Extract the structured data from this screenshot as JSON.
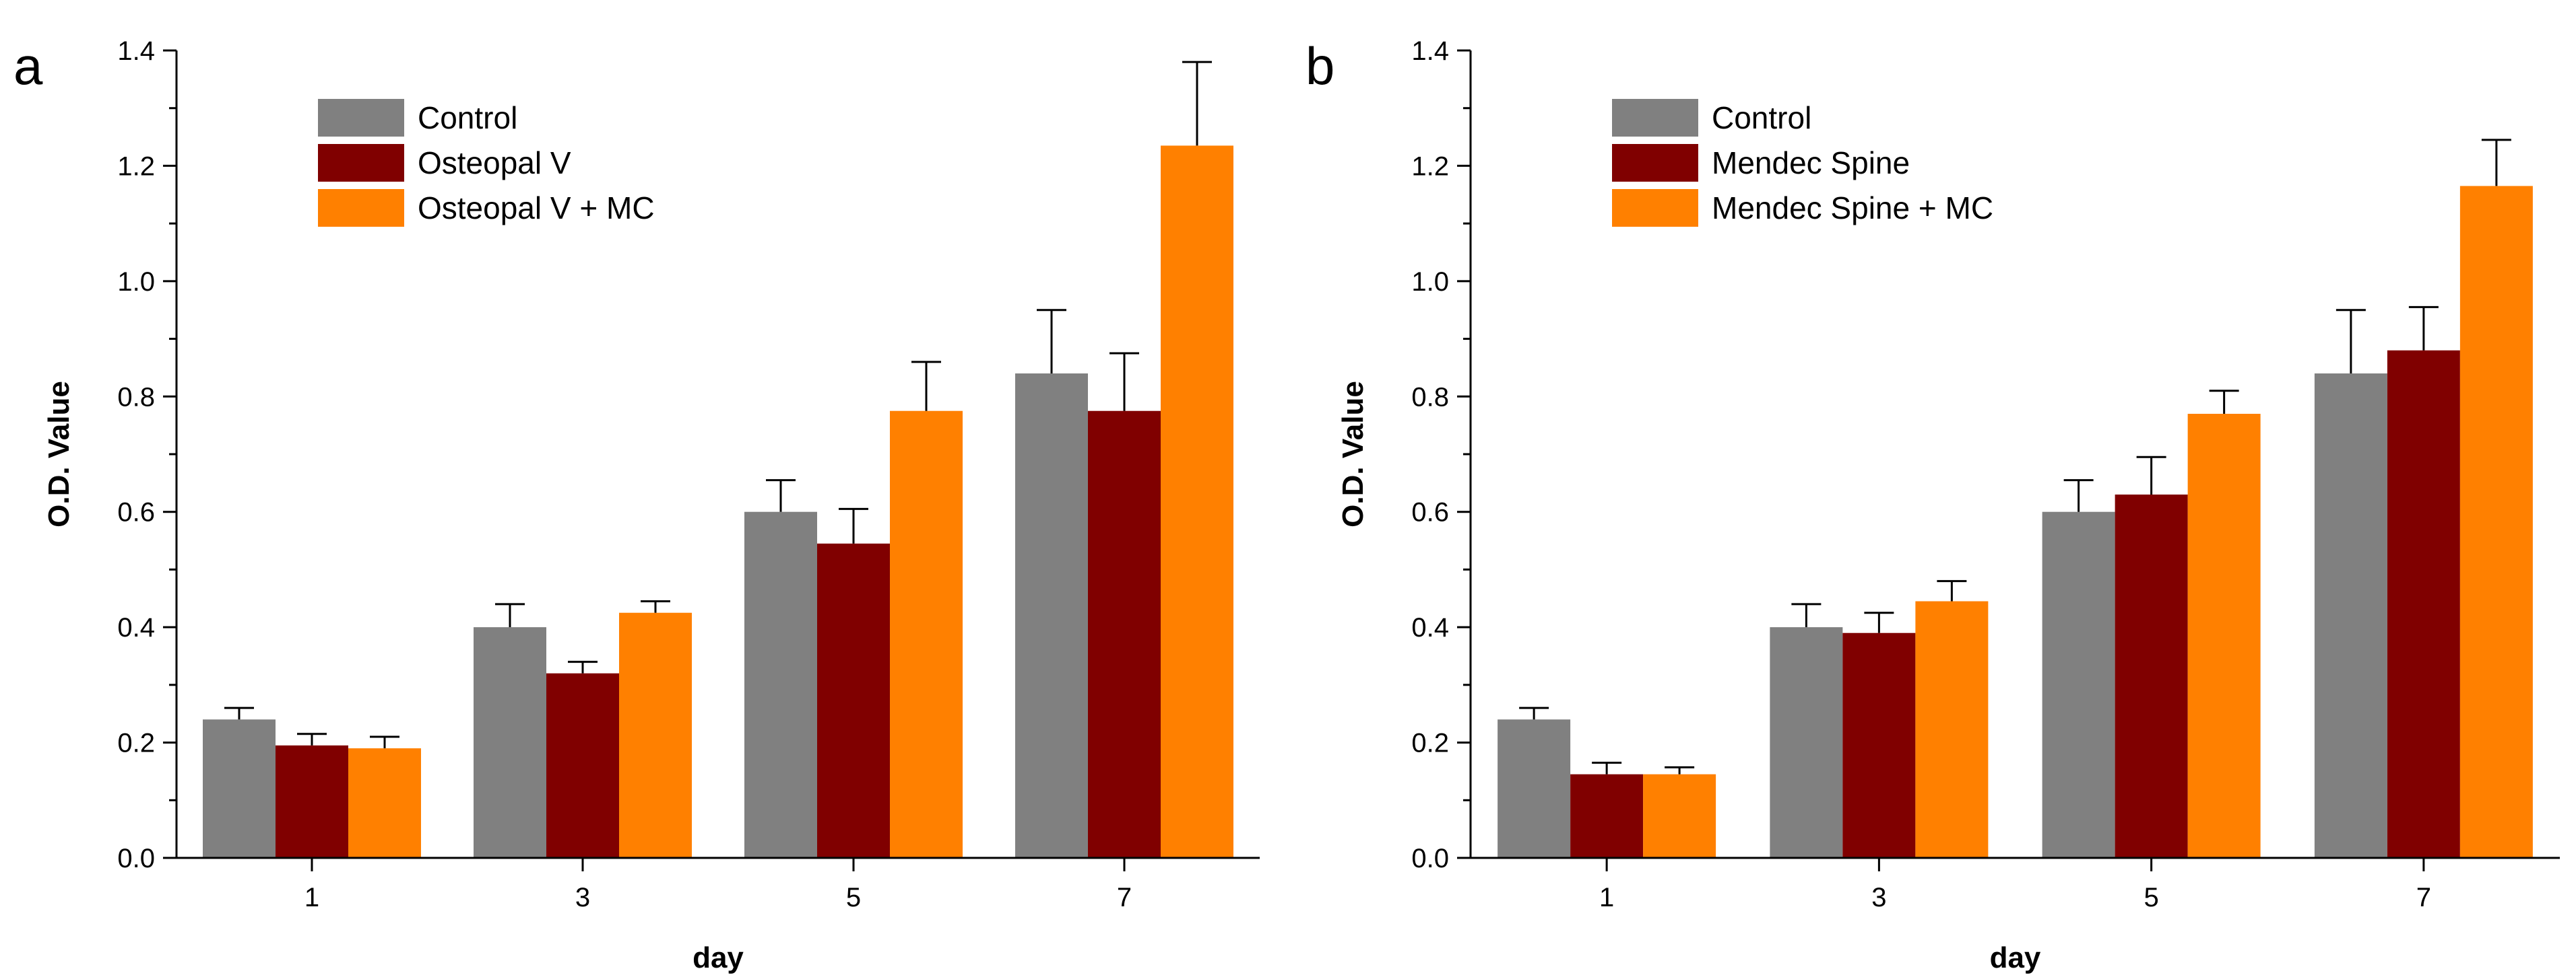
{
  "colors": {
    "control": "#808080",
    "test": "#800000",
    "test_mc": "#ff8000"
  },
  "chart_data": [
    {
      "panel": "a",
      "type": "bar",
      "xlabel": "day",
      "ylabel": "O.D. Value",
      "categories": [
        "1",
        "3",
        "5",
        "7"
      ],
      "ylim": [
        0.0,
        1.4
      ],
      "yticks": [
        "0.0",
        "0.2",
        "0.4",
        "0.6",
        "0.8",
        "1.0",
        "1.2",
        "1.4"
      ],
      "legend_position": "top-left",
      "series": [
        {
          "name": "Control",
          "color": "#808080",
          "values": [
            0.24,
            0.4,
            0.6,
            0.84
          ],
          "errors": [
            0.02,
            0.04,
            0.055,
            0.11
          ]
        },
        {
          "name": "Osteopal V",
          "color": "#800000",
          "values": [
            0.195,
            0.32,
            0.545,
            0.775
          ],
          "errors": [
            0.02,
            0.02,
            0.06,
            0.1
          ]
        },
        {
          "name": "Osteopal V + MC",
          "color": "#ff8000",
          "values": [
            0.19,
            0.425,
            0.775,
            1.235
          ],
          "errors": [
            0.02,
            0.02,
            0.085,
            0.145
          ]
        }
      ]
    },
    {
      "panel": "b",
      "type": "bar",
      "xlabel": "day",
      "ylabel": "O.D. Value",
      "categories": [
        "1",
        "3",
        "5",
        "7"
      ],
      "ylim": [
        0.0,
        1.4
      ],
      "yticks": [
        "0.0",
        "0.2",
        "0.4",
        "0.6",
        "0.8",
        "1.0",
        "1.2",
        "1.4"
      ],
      "legend_position": "top-left",
      "series": [
        {
          "name": "Control",
          "color": "#808080",
          "values": [
            0.24,
            0.4,
            0.6,
            0.84
          ],
          "errors": [
            0.02,
            0.04,
            0.055,
            0.11
          ]
        },
        {
          "name": "Mendec Spine",
          "color": "#800000",
          "values": [
            0.145,
            0.39,
            0.63,
            0.88
          ],
          "errors": [
            0.02,
            0.035,
            0.065,
            0.075
          ]
        },
        {
          "name": "Mendec Spine + MC",
          "color": "#ff8000",
          "values": [
            0.145,
            0.445,
            0.77,
            1.165
          ],
          "errors": [
            0.012,
            0.035,
            0.04,
            0.08
          ]
        }
      ]
    }
  ]
}
